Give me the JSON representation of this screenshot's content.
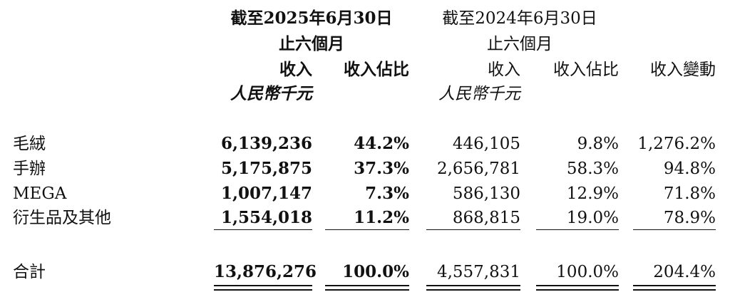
{
  "header": {
    "period_2025": "截至2025年6月30日",
    "period_2024": "截至2024年6月30日",
    "six_months_2025": "止六個月",
    "six_months_2024": "止六個月",
    "col_revenue_2025": "收入",
    "col_share_2025": "收入佔比",
    "col_revenue_2024": "收入",
    "col_share_2024": "收入佔比",
    "col_change": "收入變動",
    "unit_2025": "人民幣千元",
    "unit_2024": "人民幣千元"
  },
  "rows": [
    {
      "label": "毛絨",
      "rev_2025": "6,139,236",
      "share_2025": "44.2%",
      "rev_2024": "446,105",
      "share_2024": "9.8%",
      "change": "1,276.2%"
    },
    {
      "label": "手辦",
      "rev_2025": "5,175,875",
      "share_2025": "37.3%",
      "rev_2024": "2,656,781",
      "share_2024": "58.3%",
      "change": "94.8%"
    },
    {
      "label": "MEGA",
      "rev_2025": "1,007,147",
      "share_2025": "7.3%",
      "rev_2024": "586,130",
      "share_2024": "12.9%",
      "change": "71.8%"
    },
    {
      "label": "衍生品及其他",
      "rev_2025": "1,554,018",
      "share_2025": "11.2%",
      "rev_2024": "868,815",
      "share_2024": "19.0%",
      "change": "78.9%"
    }
  ],
  "total": {
    "label": "合計",
    "rev_2025": "13,876,276",
    "share_2025": "100.0%",
    "rev_2024": "4,557,831",
    "share_2024": "100.0%",
    "change": "204.4%"
  }
}
